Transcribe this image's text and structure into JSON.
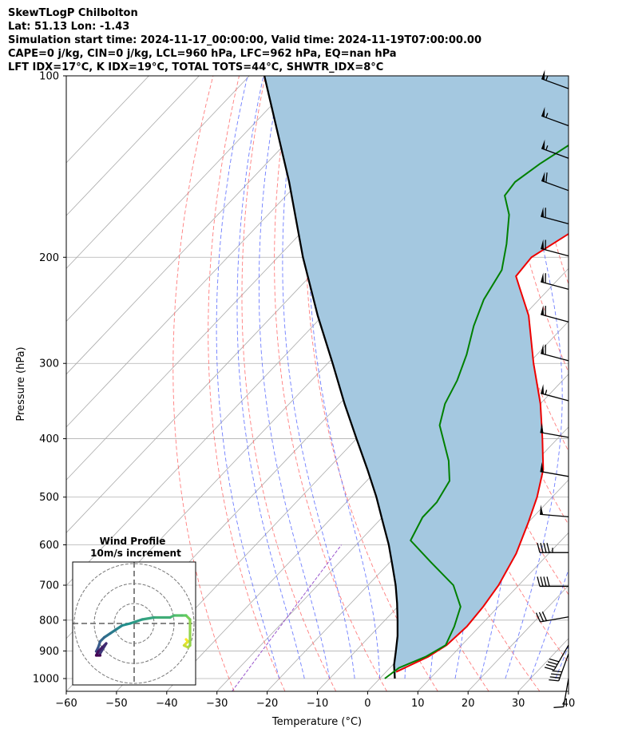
{
  "header": {
    "title": "SkewTLogP Chilbolton",
    "location": "Lat: 51.13   Lon: -1.43",
    "times": "Simulation start time: 2024-11-17_00:00:00, Valid time: 2024-11-19T07:00:00.00",
    "indices1": "CAPE=0 j/kg, CIN=0 j/kg, LCL=960 hPa, LFC=962 hPa, EQ=nan hPa",
    "indices2": "LFT IDX=17°C, K IDX=19°C, TOTAL TOTS=44°C, SHWTR_IDX=8°C"
  },
  "colors": {
    "temperature": "#ee0000",
    "dewpoint": "#008000",
    "parcel": "#000000",
    "cape_fill": "#a4c8e0",
    "isotherm": "#aaaaaa",
    "dry_adiabat": "#ff6666",
    "moist_adiabat": "#5566ff",
    "mixing_ratio": "#9955cc",
    "grid": "#b0b0b0"
  },
  "chart_data": [
    {
      "type": "line",
      "subtype": "skew-T log-P",
      "xlabel": "Temperature (°C)",
      "ylabel": "Pressure (hPa)",
      "xlim": [
        -60,
        40
      ],
      "ylim": [
        1050,
        100
      ],
      "yscale": "log",
      "x_ticks": [
        -60,
        -50,
        -40,
        -30,
        -20,
        -10,
        0,
        10,
        20,
        30,
        40
      ],
      "y_ticks": [
        100,
        200,
        300,
        400,
        500,
        600,
        700,
        800,
        900,
        1000
      ],
      "grid": true,
      "shaded_region": "between parcel profile and temperature",
      "series": [
        {
          "name": "Temperature",
          "points": [
            {
              "p": 975,
              "t": 2.0
            },
            {
              "p": 920,
              "t": 5.5
            },
            {
              "p": 880,
              "t": 7.0
            },
            {
              "p": 820,
              "t": 7.5
            },
            {
              "p": 760,
              "t": 7.0
            },
            {
              "p": 700,
              "t": 6.0
            },
            {
              "p": 620,
              "t": 3.5
            },
            {
              "p": 550,
              "t": 0.0
            },
            {
              "p": 500,
              "t": -3.0
            },
            {
              "p": 450,
              "t": -7.0
            },
            {
              "p": 400,
              "t": -13.0
            },
            {
              "p": 350,
              "t": -20.0
            },
            {
              "p": 300,
              "t": -29.0
            },
            {
              "p": 250,
              "t": -39.0
            },
            {
              "p": 225,
              "t": -46.0
            },
            {
              "p": 215,
              "t": -49.0
            },
            {
              "p": 200,
              "t": -49.5
            },
            {
              "p": 180,
              "t": -46.0
            },
            {
              "p": 160,
              "t": -43.0
            },
            {
              "p": 150,
              "t": -44.5
            },
            {
              "p": 140,
              "t": -47.5
            },
            {
              "p": 125,
              "t": -50.0
            },
            {
              "p": 110,
              "t": -53.5
            },
            {
              "p": 100,
              "t": -56.5
            }
          ]
        },
        {
          "name": "Dewpoint",
          "points": [
            {
              "p": 1000,
              "t": 1.0
            },
            {
              "p": 960,
              "t": 1.8
            },
            {
              "p": 920,
              "t": 5.0
            },
            {
              "p": 880,
              "t": 6.8
            },
            {
              "p": 820,
              "t": 5.0
            },
            {
              "p": 760,
              "t": 2.5
            },
            {
              "p": 700,
              "t": -3.0
            },
            {
              "p": 640,
              "t": -12.0
            },
            {
              "p": 590,
              "t": -20.0
            },
            {
              "p": 540,
              "t": -22.0
            },
            {
              "p": 510,
              "t": -22.0
            },
            {
              "p": 470,
              "t": -23.5
            },
            {
              "p": 435,
              "t": -27.5
            },
            {
              "p": 380,
              "t": -36.0
            },
            {
              "p": 350,
              "t": -39.0
            },
            {
              "p": 320,
              "t": -41.0
            },
            {
              "p": 290,
              "t": -44.0
            },
            {
              "p": 260,
              "t": -48.0
            },
            {
              "p": 235,
              "t": -51.0
            },
            {
              "p": 210,
              "t": -53.0
            },
            {
              "p": 190,
              "t": -57.0
            },
            {
              "p": 170,
              "t": -62.0
            },
            {
              "p": 158,
              "t": -66.5
            },
            {
              "p": 150,
              "t": -67.0
            },
            {
              "p": 140,
              "t": -65.5
            },
            {
              "p": 125,
              "t": -62.0
            },
            {
              "p": 110,
              "t": -59.0
            },
            {
              "p": 100,
              "t": -57.0
            }
          ]
        },
        {
          "name": "Parcel",
          "points": [
            {
              "p": 1000,
              "t": 3.0
            },
            {
              "p": 950,
              "t": 0.3
            },
            {
              "p": 900,
              "t": -2.0
            },
            {
              "p": 850,
              "t": -4.5
            },
            {
              "p": 800,
              "t": -7.5
            },
            {
              "p": 750,
              "t": -10.8
            },
            {
              "p": 700,
              "t": -14.5
            },
            {
              "p": 650,
              "t": -18.8
            },
            {
              "p": 600,
              "t": -23.5
            },
            {
              "p": 550,
              "t": -29.0
            },
            {
              "p": 500,
              "t": -35.0
            },
            {
              "p": 450,
              "t": -42.0
            },
            {
              "p": 400,
              "t": -50.0
            },
            {
              "p": 350,
              "t": -59.0
            },
            {
              "p": 300,
              "t": -69.0
            },
            {
              "p": 250,
              "t": -81.0
            },
            {
              "p": 200,
              "t": -95.0
            },
            {
              "p": 150,
              "t": -112.0
            },
            {
              "p": 100,
              "t": -137.0
            }
          ]
        }
      ],
      "wind_barbs": {
        "units": "kt",
        "levels": [
          {
            "p": 105,
            "dir": 290,
            "spd": 55
          },
          {
            "p": 121,
            "dir": 290,
            "spd": 55
          },
          {
            "p": 137,
            "dir": 290,
            "spd": 55
          },
          {
            "p": 155,
            "dir": 290,
            "spd": 60
          },
          {
            "p": 176,
            "dir": 285,
            "spd": 60
          },
          {
            "p": 199,
            "dir": 285,
            "spd": 60
          },
          {
            "p": 226,
            "dir": 285,
            "spd": 60
          },
          {
            "p": 256,
            "dir": 285,
            "spd": 60
          },
          {
            "p": 297,
            "dir": 285,
            "spd": 60
          },
          {
            "p": 346,
            "dir": 285,
            "spd": 55
          },
          {
            "p": 398,
            "dir": 280,
            "spd": 50
          },
          {
            "p": 462,
            "dir": 280,
            "spd": 50
          },
          {
            "p": 539,
            "dir": 275,
            "spd": 50
          },
          {
            "p": 618,
            "dir": 270,
            "spd": 45
          },
          {
            "p": 703,
            "dir": 270,
            "spd": 40
          },
          {
            "p": 790,
            "dir": 260,
            "spd": 30
          },
          {
            "p": 880,
            "dir": 210,
            "spd": 40
          },
          {
            "p": 910,
            "dir": 200,
            "spd": 40
          },
          {
            "p": 1000,
            "dir": 190,
            "spd": 10
          }
        ]
      }
    },
    {
      "type": "line",
      "subtype": "hodograph",
      "title": "Wind Profile",
      "subtitle": "10m/s increment",
      "ring_increment": 10,
      "rings": 3,
      "grid": true,
      "points": [
        {
          "u": 26,
          "v": -8
        },
        {
          "u": 27,
          "v": -9
        },
        {
          "u": 25,
          "v": -11
        },
        {
          "u": 27,
          "v": -12
        },
        {
          "u": 28,
          "v": -11
        },
        {
          "u": 28,
          "v": 2
        },
        {
          "u": 26,
          "v": 4
        },
        {
          "u": 24,
          "v": 4
        },
        {
          "u": 20,
          "v": 4
        },
        {
          "u": 18,
          "v": 3
        },
        {
          "u": 10,
          "v": 3
        },
        {
          "u": 4,
          "v": 2
        },
        {
          "u": -2,
          "v": 0
        },
        {
          "u": -6,
          "v": -1
        },
        {
          "u": -9,
          "v": -3
        },
        {
          "u": -12,
          "v": -5
        },
        {
          "u": -15,
          "v": -7
        },
        {
          "u": -17,
          "v": -9
        },
        {
          "u": -18,
          "v": -12
        },
        {
          "u": -19,
          "v": -14
        },
        {
          "u": -17,
          "v": -15
        },
        {
          "u": -14,
          "v": -10
        },
        {
          "u": -16,
          "v": -12
        },
        {
          "u": -18,
          "v": -14
        },
        {
          "u": -19,
          "v": -16
        },
        {
          "u": -17,
          "v": -16
        }
      ],
      "colormap": "viridis reversed (yellow at surface, purple aloft)"
    }
  ]
}
